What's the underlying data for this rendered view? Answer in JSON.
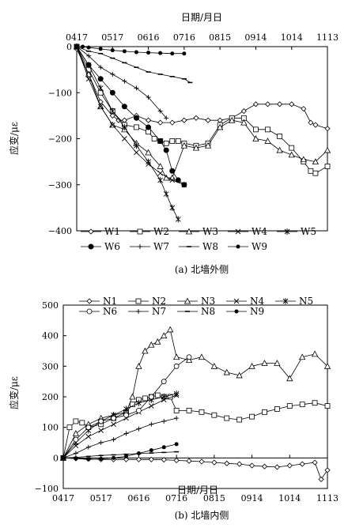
{
  "chart_data": [
    {
      "type": "line",
      "caption": "(a) 北墙外侧",
      "xlabel": "日期/月日",
      "ylabel": "应变/με",
      "x_axis_position": "top",
      "x_ticks": [
        "0417",
        "0517",
        "0616",
        "0716",
        "0815",
        "0914",
        "1014",
        "1113"
      ],
      "ylim": [
        -400,
        0
      ],
      "y_ticks": [
        "0",
        "−100",
        "−200",
        "−300",
        "−400"
      ],
      "legend": "bottom",
      "series": [
        {
          "name": "W1",
          "marker": "diamond",
          "x": [
            0,
            10,
            20,
            30,
            35,
            40,
            50,
            60,
            70,
            80,
            90,
            100,
            110,
            120,
            130,
            140,
            150,
            160,
            170,
            180,
            190,
            196,
            200,
            210
          ],
          "y": [
            -5,
            -60,
            -120,
            -150,
            -160,
            -160,
            -150,
            -160,
            -165,
            -165,
            -160,
            -155,
            -160,
            -160,
            -155,
            -140,
            -125,
            -125,
            -125,
            -125,
            -135,
            -165,
            -170,
            -178
          ]
        },
        {
          "name": "W2",
          "marker": "square",
          "x": [
            0,
            10,
            20,
            30,
            40,
            50,
            60,
            65,
            70,
            75,
            80,
            85,
            90,
            100,
            110,
            120,
            130,
            140,
            150,
            160,
            170,
            180,
            190,
            196,
            200,
            210
          ],
          "y": [
            0,
            -50,
            -100,
            -140,
            -170,
            -175,
            -185,
            -200,
            -205,
            -210,
            -205,
            -205,
            -210,
            -215,
            -210,
            -170,
            -155,
            -155,
            -180,
            -180,
            -195,
            -220,
            -250,
            -270,
            -275,
            -260
          ]
        },
        {
          "name": "W3",
          "marker": "triangle",
          "x": [
            0,
            10,
            20,
            30,
            40,
            50,
            60,
            70,
            75,
            80,
            90,
            100,
            110,
            120,
            130,
            140,
            150,
            160,
            170,
            180,
            190,
            200,
            210
          ],
          "y": [
            0,
            -60,
            -130,
            -170,
            -180,
            -210,
            -230,
            -260,
            -285,
            -285,
            -215,
            -220,
            -215,
            -175,
            -160,
            -165,
            -200,
            -205,
            -225,
            -235,
            -245,
            -250,
            -225
          ]
        },
        {
          "name": "W4",
          "marker": "x",
          "x": [
            0,
            10,
            20,
            30,
            40,
            50,
            60,
            70,
            80,
            90
          ],
          "y": [
            0,
            -70,
            -130,
            -170,
            -200,
            -230,
            -255,
            -275,
            -290,
            -300
          ]
        },
        {
          "name": "W5",
          "marker": "star",
          "x": [
            0,
            10,
            20,
            30,
            40,
            50,
            60,
            70,
            75,
            80,
            85
          ],
          "y": [
            0,
            -40,
            -90,
            -140,
            -175,
            -215,
            -250,
            -290,
            -320,
            -350,
            -375
          ]
        },
        {
          "name": "W6",
          "marker": "circle-filled",
          "x": [
            0,
            10,
            20,
            30,
            40,
            50,
            60,
            70,
            75,
            80,
            85,
            90
          ],
          "y": [
            0,
            -40,
            -70,
            -100,
            -130,
            -155,
            -175,
            -205,
            -225,
            -270,
            -290,
            -300
          ]
        },
        {
          "name": "W7",
          "marker": "plus",
          "x": [
            0,
            10,
            20,
            30,
            40,
            50,
            60,
            70,
            75
          ],
          "y": [
            0,
            -20,
            -45,
            -60,
            -75,
            -90,
            -110,
            -140,
            -155
          ]
        },
        {
          "name": "W8",
          "marker": "dash",
          "x": [
            0,
            10,
            20,
            30,
            40,
            50,
            60,
            70,
            80,
            90,
            95
          ],
          "y": [
            0,
            -10,
            -15,
            -25,
            -35,
            -45,
            -55,
            -60,
            -65,
            -70,
            -78
          ]
        },
        {
          "name": "W9",
          "marker": "dot-filled",
          "x": [
            5,
            10,
            20,
            30,
            40,
            50,
            60,
            70,
            80,
            90
          ],
          "y": [
            0,
            -2,
            -5,
            -8,
            -10,
            -12,
            -13,
            -14,
            -15,
            -15
          ]
        }
      ]
    },
    {
      "type": "line",
      "caption": "(b) 北墙内侧",
      "xlabel": "日期/月日",
      "ylabel": "应变/με",
      "x_axis_position": "bottom",
      "x_ticks": [
        "0417",
        "0517",
        "0616",
        "0716",
        "0815",
        "0914",
        "1014",
        "1113"
      ],
      "ylim": [
        -100,
        500
      ],
      "y_ticks": [
        "500",
        "400",
        "300",
        "200",
        "100",
        "0",
        "−100"
      ],
      "legend": "top",
      "series": [
        {
          "name": "N1",
          "marker": "diamond",
          "x": [
            0,
            10,
            20,
            30,
            40,
            50,
            60,
            70,
            80,
            90,
            100,
            110,
            120,
            130,
            140,
            150,
            160,
            170,
            180,
            190,
            200,
            205,
            210
          ],
          "y": [
            0,
            -2,
            -3,
            -5,
            -5,
            -5,
            -5,
            -5,
            -6,
            -8,
            -10,
            -12,
            -15,
            -18,
            -20,
            -25,
            -28,
            -30,
            -25,
            -20,
            -15,
            -70,
            -40
          ]
        },
        {
          "name": "N2",
          "marker": "square",
          "x": [
            0,
            5,
            10,
            15,
            20,
            30,
            40,
            50,
            55,
            60,
            65,
            70,
            75,
            80,
            85,
            90,
            100,
            110,
            120,
            130,
            140,
            150,
            160,
            170,
            180,
            190,
            200,
            210
          ],
          "y": [
            0,
            100,
            120,
            115,
            100,
            110,
            130,
            150,
            175,
            190,
            195,
            200,
            205,
            200,
            200,
            155,
            155,
            150,
            140,
            130,
            125,
            135,
            150,
            160,
            170,
            175,
            180,
            170
          ]
        },
        {
          "name": "N3",
          "marker": "triangle",
          "x": [
            0,
            10,
            20,
            30,
            40,
            50,
            55,
            60,
            65,
            70,
            75,
            80,
            85,
            90,
            100,
            110,
            120,
            130,
            140,
            150,
            160,
            170,
            180,
            190,
            200,
            210
          ],
          "y": [
            0,
            80,
            110,
            130,
            140,
            150,
            200,
            300,
            350,
            370,
            380,
            400,
            420,
            330,
            320,
            330,
            300,
            280,
            270,
            300,
            310,
            310,
            260,
            330,
            340,
            300
          ]
        },
        {
          "name": "N4",
          "marker": "x",
          "x": [
            0,
            10,
            20,
            30,
            40,
            50,
            60,
            70,
            80,
            90
          ],
          "y": [
            0,
            40,
            70,
            90,
            110,
            130,
            150,
            170,
            190,
            205
          ]
        },
        {
          "name": "N5",
          "marker": "star",
          "x": [
            0,
            10,
            20,
            30,
            40,
            50,
            60,
            70,
            80,
            90
          ],
          "y": [
            0,
            50,
            90,
            120,
            140,
            160,
            180,
            190,
            200,
            210
          ]
        },
        {
          "name": "N6",
          "marker": "circle",
          "x": [
            0,
            10,
            20,
            30,
            40,
            50,
            60,
            70,
            80,
            90,
            100
          ],
          "y": [
            0,
            60,
            100,
            120,
            130,
            140,
            155,
            200,
            250,
            300,
            330
          ]
        },
        {
          "name": "N7",
          "marker": "plus",
          "x": [
            0,
            10,
            20,
            30,
            40,
            50,
            60,
            70,
            80,
            90
          ],
          "y": [
            0,
            15,
            35,
            50,
            60,
            80,
            95,
            110,
            120,
            130
          ]
        },
        {
          "name": "N8",
          "marker": "dash",
          "x": [
            0,
            10,
            20,
            30,
            40,
            50,
            60,
            70,
            80,
            90
          ],
          "y": [
            0,
            2,
            5,
            8,
            10,
            12,
            14,
            16,
            18,
            20
          ]
        },
        {
          "name": "N9",
          "marker": "dot-filled",
          "x": [
            0,
            10,
            20,
            30,
            40,
            50,
            60,
            70,
            80,
            90
          ],
          "y": [
            0,
            -2,
            -5,
            -3,
            0,
            5,
            15,
            25,
            35,
            45
          ]
        }
      ]
    }
  ]
}
